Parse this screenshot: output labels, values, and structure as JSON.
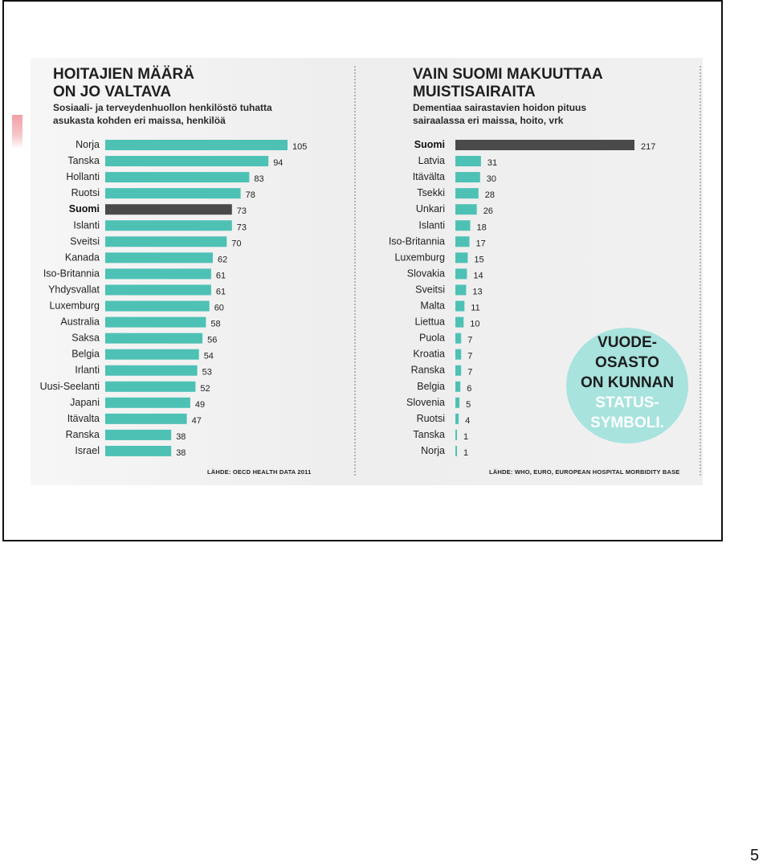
{
  "page_number": "5",
  "colors": {
    "bar": "#4ec1b5",
    "highlight_bar": "#4a4a4a",
    "callout": "#a8e3de"
  },
  "callout": {
    "line1": "VUODE-",
    "line2": "OSASTO",
    "line3": "ON KUNNAN",
    "line4": "STATUS-",
    "line5": "SYMBOLI."
  },
  "chart_data": [
    {
      "type": "bar",
      "orientation": "horizontal",
      "title_line1": "HOITAJIEN MÄÄRÄ",
      "title_line2": "ON JO VALTAVA",
      "subtitle_line1": "Sosiaali- ja terveydenhuollon henkilöstö tuhatta",
      "subtitle_line2": "asukasta kohden eri maissa, henkilöä",
      "source": "LÄHDE: OECD HEALTH DATA 2011",
      "highlight": "Suomi",
      "categories": [
        "Norja",
        "Tanska",
        "Hollanti",
        "Ruotsi",
        "Suomi",
        "Islanti",
        "Sveitsi",
        "Kanada",
        "Iso-Britannia",
        "Yhdysvallat",
        "Luxemburg",
        "Australia",
        "Saksa",
        "Belgia",
        "Irlanti",
        "Uusi-Seelanti",
        "Japani",
        "Itävalta",
        "Ranska",
        "Israel"
      ],
      "values": [
        105,
        94,
        83,
        78,
        73,
        73,
        70,
        62,
        61,
        61,
        60,
        58,
        56,
        54,
        53,
        52,
        49,
        47,
        38,
        38
      ]
    },
    {
      "type": "bar",
      "orientation": "horizontal",
      "title_line1": "VAIN SUOMI MAKUUTTAA",
      "title_line2": "MUISTISAIRAITA",
      "subtitle_line1": "Dementiaa sairastavien hoidon pituus",
      "subtitle_line2": "sairaalassa eri maissa, hoito, vrk",
      "source": "LÄHDE: WHO, EURO, EUROPEAN HOSPITAL MORBIDITY BASE",
      "highlight": "Suomi",
      "categories": [
        "Suomi",
        "Latvia",
        "Itävälta",
        "Tsekki",
        "Unkari",
        "Islanti",
        "Iso-Britannia",
        "Luxemburg",
        "Slovakia",
        "Sveitsi",
        "Malta",
        "Liettua",
        "Puola",
        "Kroatia",
        "Ranska",
        "Belgia",
        "Slovenia",
        "Ruotsi",
        "Tanska",
        "Norja"
      ],
      "values": [
        217,
        31,
        30,
        28,
        26,
        18,
        17,
        15,
        14,
        13,
        11,
        10,
        7,
        7,
        7,
        6,
        5,
        4,
        1,
        1
      ]
    }
  ]
}
